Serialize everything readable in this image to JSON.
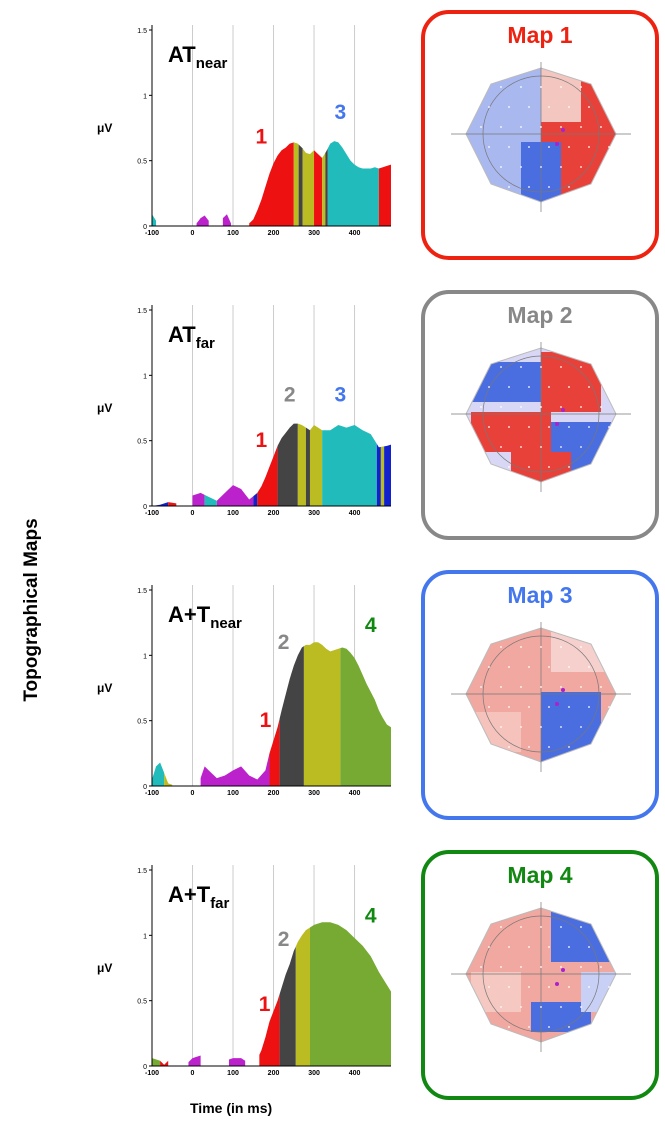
{
  "figure": {
    "side_title": "Topographical Maps",
    "x_axis_title": "Time (in ms)"
  },
  "palette": {
    "1": "#ee1111",
    "2": "#444444",
    "3": "#22bbbb",
    "4": "#77aa33",
    "magenta": "#bb22cc",
    "olive": "#bbbb22",
    "blue": "#1122cc",
    "map1": "#ee2211",
    "map2": "#888888",
    "map3": "#4477ee",
    "map4": "#118811"
  },
  "chart_data": [
    {
      "type": "area",
      "condition": "AT",
      "subscript": "near",
      "ylabel": "μV",
      "ylim": [
        0,
        1.5
      ],
      "yticks": [
        "0",
        "0.5",
        "1",
        "1.5"
      ],
      "xlim": [
        -100,
        490
      ],
      "xticks": [
        "-100",
        "0",
        "100",
        "200",
        "300",
        "400"
      ],
      "x": [
        -100,
        -90,
        -80,
        -60,
        -40,
        -20,
        0,
        10,
        20,
        30,
        40,
        60,
        75,
        85,
        95,
        110,
        130,
        140,
        150,
        160,
        170,
        180,
        190,
        200,
        210,
        220,
        230,
        240,
        250,
        260,
        270,
        280,
        290,
        300,
        310,
        320,
        330,
        340,
        350,
        360,
        370,
        380,
        390,
        400,
        410,
        420,
        430,
        440,
        450,
        460,
        470,
        480,
        490
      ],
      "y": [
        0.09,
        0.04,
        0.01,
        0.0,
        0.0,
        0.0,
        0.0,
        0.02,
        0.06,
        0.08,
        0.04,
        0.0,
        0.06,
        0.09,
        0.02,
        0.0,
        0.0,
        0.02,
        0.05,
        0.12,
        0.2,
        0.3,
        0.4,
        0.48,
        0.54,
        0.58,
        0.6,
        0.63,
        0.64,
        0.63,
        0.6,
        0.56,
        0.55,
        0.58,
        0.55,
        0.52,
        0.57,
        0.63,
        0.65,
        0.64,
        0.6,
        0.55,
        0.5,
        0.47,
        0.45,
        0.44,
        0.44,
        0.44,
        0.45,
        0.44,
        0.45,
        0.46,
        0.47
      ],
      "segments": [
        {
          "from": -100,
          "to": -90,
          "color": "3"
        },
        {
          "from": 10,
          "to": 40,
          "color": "magenta"
        },
        {
          "from": 75,
          "to": 95,
          "color": "magenta"
        },
        {
          "from": 140,
          "to": 250,
          "color": "1"
        },
        {
          "from": 250,
          "to": 262,
          "color": "olive"
        },
        {
          "from": 262,
          "to": 272,
          "color": "2"
        },
        {
          "from": 272,
          "to": 300,
          "color": "olive"
        },
        {
          "from": 300,
          "to": 320,
          "color": "1"
        },
        {
          "from": 320,
          "to": 328,
          "color": "olive"
        },
        {
          "from": 328,
          "to": 334,
          "color": "2"
        },
        {
          "from": 334,
          "to": 460,
          "color": "3"
        },
        {
          "from": 460,
          "to": 490,
          "color": "1"
        }
      ],
      "labels": [
        {
          "text": "1",
          "x": 170,
          "y": 0.63,
          "color": "1"
        },
        {
          "text": "3",
          "x": 365,
          "y": 0.82,
          "color": "map3"
        }
      ],
      "map": {
        "title": "Map 1",
        "color": "map1"
      }
    },
    {
      "type": "area",
      "condition": "AT",
      "subscript": "far",
      "ylabel": "μV",
      "ylim": [
        0,
        1.5
      ],
      "yticks": [
        "0",
        "0.5",
        "1",
        "1.5"
      ],
      "xlim": [
        -100,
        490
      ],
      "xticks": [
        "-100",
        "0",
        "100",
        "200",
        "300",
        "400"
      ],
      "x": [
        -100,
        -80,
        -60,
        -40,
        -20,
        0,
        20,
        40,
        60,
        80,
        100,
        120,
        140,
        160,
        170,
        180,
        190,
        200,
        210,
        220,
        230,
        240,
        250,
        260,
        270,
        280,
        290,
        300,
        320,
        340,
        360,
        380,
        400,
        420,
        440,
        460,
        480,
        490
      ],
      "y": [
        0.0,
        0.01,
        0.03,
        0.02,
        0.05,
        0.08,
        0.1,
        0.07,
        0.04,
        0.1,
        0.16,
        0.13,
        0.05,
        0.1,
        0.15,
        0.22,
        0.3,
        0.38,
        0.46,
        0.52,
        0.56,
        0.6,
        0.63,
        0.63,
        0.62,
        0.6,
        0.58,
        0.62,
        0.58,
        0.58,
        0.62,
        0.6,
        0.62,
        0.58,
        0.55,
        0.45,
        0.46,
        0.47
      ],
      "segments": [
        {
          "from": -100,
          "to": -60,
          "color": "blue"
        },
        {
          "from": -60,
          "to": -40,
          "color": "1"
        },
        {
          "from": 0,
          "to": 30,
          "color": "magenta"
        },
        {
          "from": 30,
          "to": 60,
          "color": "3"
        },
        {
          "from": 60,
          "to": 150,
          "color": "magenta"
        },
        {
          "from": 150,
          "to": 160,
          "color": "blue"
        },
        {
          "from": 160,
          "to": 210,
          "color": "1"
        },
        {
          "from": 210,
          "to": 260,
          "color": "2"
        },
        {
          "from": 260,
          "to": 280,
          "color": "olive"
        },
        {
          "from": 280,
          "to": 290,
          "color": "2"
        },
        {
          "from": 290,
          "to": 320,
          "color": "olive"
        },
        {
          "from": 320,
          "to": 455,
          "color": "3"
        },
        {
          "from": 455,
          "to": 465,
          "color": "blue"
        },
        {
          "from": 465,
          "to": 473,
          "color": "olive"
        },
        {
          "from": 473,
          "to": 490,
          "color": "blue"
        }
      ],
      "labels": [
        {
          "text": "1",
          "x": 170,
          "y": 0.45,
          "color": "1"
        },
        {
          "text": "2",
          "x": 240,
          "y": 0.8,
          "color": "map2"
        },
        {
          "text": "3",
          "x": 365,
          "y": 0.8,
          "color": "map3"
        }
      ],
      "map": {
        "title": "Map 2",
        "color": "map2"
      }
    },
    {
      "type": "area",
      "condition": "A+T",
      "subscript": "near",
      "ylabel": "μV",
      "ylim": [
        0,
        1.5
      ],
      "yticks": [
        "0",
        "0.5",
        "1",
        "1.5"
      ],
      "xlim": [
        -100,
        490
      ],
      "xticks": [
        "-100",
        "0",
        "100",
        "200",
        "300",
        "400"
      ],
      "x": [
        -100,
        -90,
        -80,
        -70,
        -60,
        -40,
        -20,
        0,
        20,
        30,
        40,
        60,
        80,
        100,
        120,
        140,
        160,
        180,
        190,
        200,
        210,
        220,
        230,
        240,
        250,
        260,
        270,
        280,
        290,
        300,
        310,
        320,
        330,
        340,
        350,
        360,
        370,
        380,
        390,
        400,
        410,
        420,
        430,
        440,
        450,
        460,
        470,
        480,
        490
      ],
      "y": [
        0.05,
        0.15,
        0.18,
        0.1,
        0.02,
        0.0,
        0.0,
        0.02,
        0.06,
        0.15,
        0.12,
        0.06,
        0.08,
        0.12,
        0.15,
        0.08,
        0.05,
        0.12,
        0.25,
        0.35,
        0.45,
        0.58,
        0.7,
        0.82,
        0.92,
        1.0,
        1.06,
        1.08,
        1.08,
        1.1,
        1.1,
        1.08,
        1.05,
        1.03,
        1.04,
        1.05,
        1.06,
        1.05,
        1.02,
        0.98,
        0.92,
        0.85,
        0.78,
        0.72,
        0.66,
        0.58,
        0.52,
        0.47,
        0.45
      ],
      "segments": [
        {
          "from": -100,
          "to": -70,
          "color": "3"
        },
        {
          "from": -70,
          "to": -50,
          "color": "olive"
        },
        {
          "from": 20,
          "to": 190,
          "color": "magenta"
        },
        {
          "from": 190,
          "to": 215,
          "color": "1"
        },
        {
          "from": 215,
          "to": 275,
          "color": "2"
        },
        {
          "from": 275,
          "to": 365,
          "color": "olive"
        },
        {
          "from": 365,
          "to": 490,
          "color": "4"
        }
      ],
      "labels": [
        {
          "text": "1",
          "x": 180,
          "y": 0.45,
          "color": "1"
        },
        {
          "text": "2",
          "x": 225,
          "y": 1.05,
          "color": "map2"
        },
        {
          "text": "4",
          "x": 440,
          "y": 1.18,
          "color": "map4"
        }
      ],
      "map": {
        "title": "Map 3",
        "color": "map3"
      }
    },
    {
      "type": "area",
      "condition": "A+T",
      "subscript": "far",
      "ylabel": "μV",
      "ylim": [
        0,
        1.5
      ],
      "yticks": [
        "0",
        "0.5",
        "1",
        "1.5"
      ],
      "xlim": [
        -100,
        490
      ],
      "xticks": [
        "-100",
        "0",
        "100",
        "200",
        "300",
        "400"
      ],
      "x": [
        -100,
        -80,
        -70,
        -60,
        -40,
        -20,
        0,
        20,
        40,
        60,
        80,
        100,
        120,
        140,
        160,
        170,
        180,
        190,
        200,
        210,
        220,
        230,
        240,
        250,
        260,
        270,
        280,
        290,
        300,
        320,
        340,
        360,
        380,
        400,
        420,
        440,
        460,
        480,
        490
      ],
      "y": [
        0.06,
        0.04,
        0.01,
        0.04,
        0.02,
        0.0,
        0.06,
        0.08,
        0.04,
        0.02,
        0.04,
        0.06,
        0.06,
        0.02,
        0.05,
        0.12,
        0.22,
        0.34,
        0.42,
        0.5,
        0.6,
        0.7,
        0.78,
        0.88,
        0.95,
        1.0,
        1.04,
        1.06,
        1.08,
        1.1,
        1.1,
        1.08,
        1.04,
        0.98,
        0.92,
        0.84,
        0.72,
        0.62,
        0.57
      ],
      "segments": [
        {
          "from": -100,
          "to": -80,
          "color": "4"
        },
        {
          "from": -80,
          "to": -60,
          "color": "1"
        },
        {
          "from": -10,
          "to": 20,
          "color": "magenta"
        },
        {
          "from": 90,
          "to": 130,
          "color": "magenta"
        },
        {
          "from": 165,
          "to": 215,
          "color": "1"
        },
        {
          "from": 215,
          "to": 255,
          "color": "2"
        },
        {
          "from": 255,
          "to": 290,
          "color": "olive"
        },
        {
          "from": 290,
          "to": 490,
          "color": "4"
        }
      ],
      "labels": [
        {
          "text": "1",
          "x": 178,
          "y": 0.42,
          "color": "1"
        },
        {
          "text": "2",
          "x": 225,
          "y": 0.92,
          "color": "map2"
        },
        {
          "text": "4",
          "x": 440,
          "y": 1.1,
          "color": "map4"
        }
      ],
      "map": {
        "title": "Map 4",
        "color": "map4"
      }
    }
  ]
}
